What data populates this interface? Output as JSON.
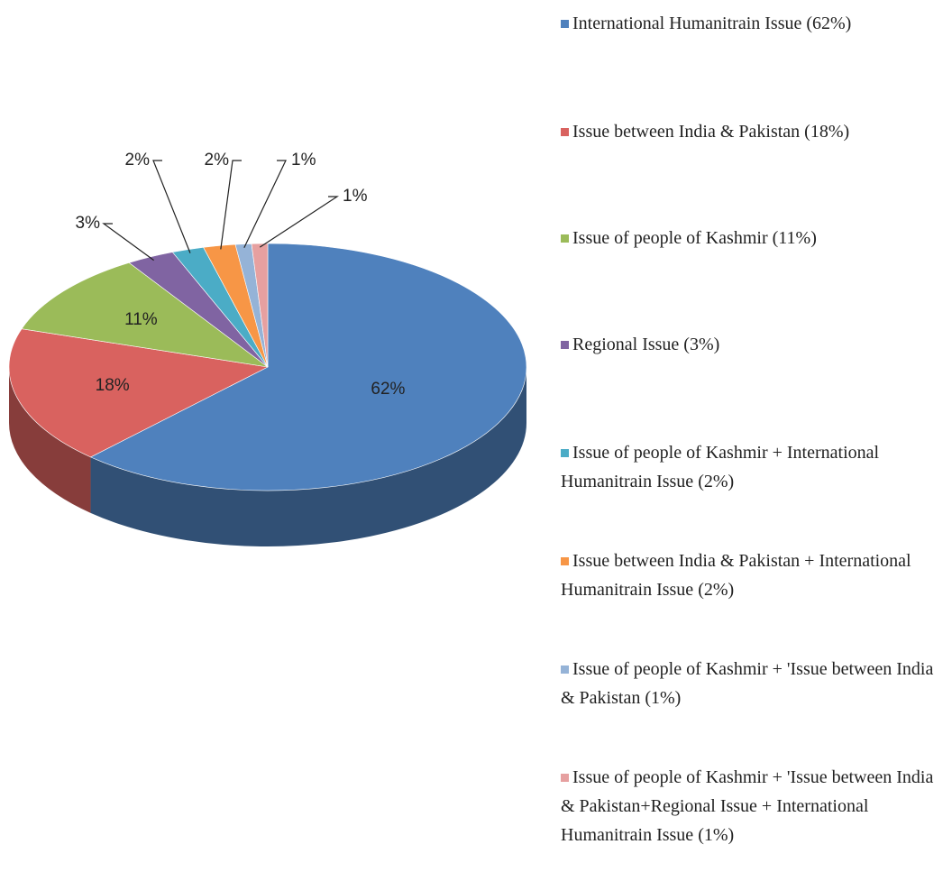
{
  "chart_data": {
    "type": "pie",
    "categories": [
      "International Humanitrain Issue (62%)",
      "Issue between India & Pakistan (18%)",
      "Issue of people of Kashmir (11%)",
      "Regional Issue (3%)",
      "Issue of people of Kashmir + International Humanitrain Issue (2%)",
      "Issue between India & Pakistan + International Humanitrain Issue (2%)",
      "Issue of people of Kashmir + 'Issue between India & Pakistan (1%)",
      "Issue of people of Kashmir + 'Issue between India & Pakistan+Regional Issue + International Humanitrain Issue (1%)"
    ],
    "values": [
      62,
      18,
      11,
      3,
      2,
      2,
      1,
      1
    ],
    "value_labels": [
      "62%",
      "18%",
      "11%",
      "3%",
      "2%",
      "2%",
      "1%",
      "1%"
    ],
    "colors": [
      "#4f81bd",
      "#d9625f",
      "#9bbb59",
      "#8064a2",
      "#4bacc6",
      "#f79646",
      "#95b3d7",
      "#e6a0a0"
    ],
    "legend": "right"
  }
}
